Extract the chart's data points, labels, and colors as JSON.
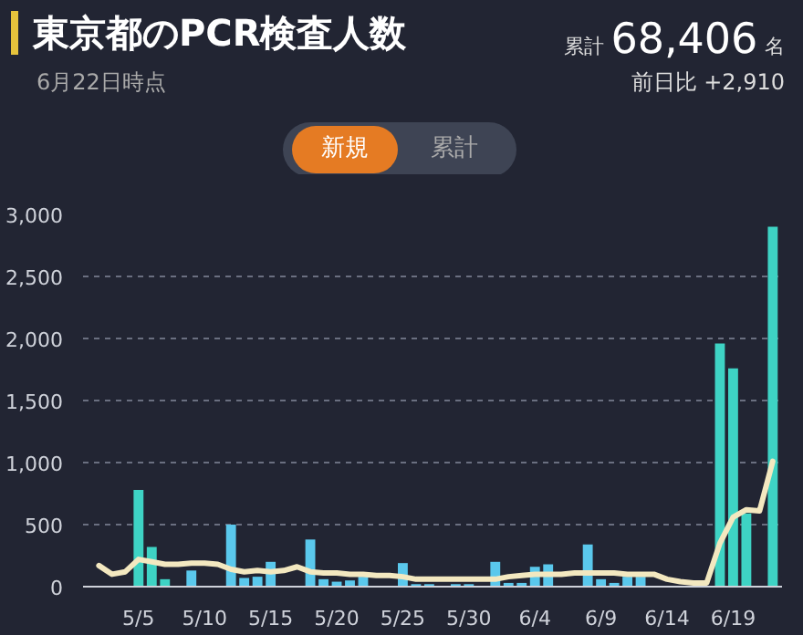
{
  "chart_data": {
    "type": "bar",
    "title": "東京都のPCR検査人数",
    "subtitle": "6月22日時点",
    "annotations": [
      "累計",
      "68,406",
      "名",
      "前日比 +2,910",
      "新規",
      "累計"
    ],
    "categories": [
      null,
      null,
      null,
      "5/5",
      null,
      null,
      null,
      null,
      "5/10",
      null,
      null,
      null,
      null,
      "5/15",
      null,
      null,
      null,
      null,
      "5/20",
      null,
      null,
      null,
      null,
      "5/25",
      null,
      null,
      null,
      null,
      "5/30",
      null,
      null,
      null,
      null,
      "6/4",
      null,
      null,
      null,
      null,
      "6/9",
      null,
      null,
      null,
      null,
      "6/14",
      null,
      null,
      null,
      null,
      "6/19",
      null,
      null,
      null
    ],
    "series": [
      {
        "colors": [
          "#5ac8ec",
          "#5ac8ec",
          "#5ac8ec",
          "#3ed3c4",
          "#3ed3c4",
          "#3ed3c4",
          "#5ac8ec",
          "#5ac8ec",
          "#5ac8ec",
          "#5ac8ec",
          "#5ac8ec",
          "#5ac8ec",
          "#5ac8ec",
          "#5ac8ec",
          "#5ac8ec",
          "#5ac8ec",
          "#5ac8ec",
          "#5ac8ec",
          "#5ac8ec",
          "#5ac8ec",
          "#5ac8ec",
          "#5ac8ec",
          "#5ac8ec",
          "#5ac8ec",
          "#5ac8ec",
          "#5ac8ec",
          "#5ac8ec",
          "#5ac8ec",
          "#5ac8ec",
          "#5ac8ec",
          "#5ac8ec",
          "#5ac8ec",
          "#5ac8ec",
          "#5ac8ec",
          "#5ac8ec",
          "#5ac8ec",
          "#5ac8ec",
          "#5ac8ec",
          "#5ac8ec",
          "#5ac8ec",
          "#5ac8ec",
          "#5ac8ec",
          "#5ac8ec",
          "#5ac8ec",
          "#5ac8ec",
          "#5ac8ec",
          "#5ac8ec",
          "#3ed3c4",
          "#3ed3c4",
          "#3ed3c4",
          "#3ed3c4",
          "#3ed3c4"
        ],
        "values": [
          null,
          null,
          null,
          780,
          320,
          60,
          null,
          130,
          null,
          null,
          500,
          70,
          80,
          200,
          null,
          null,
          380,
          60,
          40,
          50,
          80,
          null,
          null,
          190,
          20,
          20,
          null,
          20,
          20,
          null,
          200,
          30,
          30,
          160,
          180,
          null,
          null,
          340,
          60,
          30,
          80,
          80,
          null,
          null,
          null,
          null,
          null,
          1960,
          1760,
          590,
          null,
          2900
        ]
      },
      {
        "type": "line",
        "color": "#f3e8c0",
        "values": [
          170,
          100,
          120,
          220,
          200,
          180,
          180,
          190,
          190,
          180,
          140,
          120,
          130,
          120,
          130,
          160,
          120,
          110,
          110,
          100,
          100,
          90,
          90,
          80,
          60,
          60,
          60,
          60,
          60,
          60,
          60,
          80,
          90,
          100,
          100,
          100,
          110,
          110,
          110,
          110,
          100,
          100,
          100,
          60,
          40,
          30,
          30,
          350,
          560,
          620,
          610,
          1010
        ]
      }
    ],
    "ylim": [
      0,
      3000
    ],
    "yticks": [
      0,
      500,
      {
        "value": 1000,
        "label": "1,000"
      },
      {
        "value": 1500,
        "label": "1,500"
      },
      {
        "value": 2000,
        "label": "2,000"
      },
      {
        "value": 2500,
        "label": "2,500"
      },
      {
        "value": 3000,
        "label": "3,000"
      }
    ],
    "grid": "y"
  }
}
